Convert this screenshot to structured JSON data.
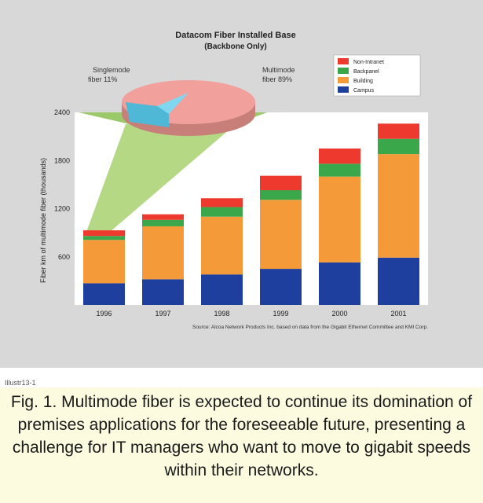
{
  "chart_data": {
    "type": "bar",
    "stacked": true,
    "title": "Datacom Fiber Installed Base",
    "subtitle": "(Backbone Only)",
    "ylabel": "Fiber km of multimode fiber (thousands)",
    "ylim": [
      0,
      2400
    ],
    "yticks": [
      "600",
      "1200",
      "1800",
      "2400"
    ],
    "ytick_values": [
      600,
      1200,
      1800,
      2400
    ],
    "categories": [
      "1996",
      "1997",
      "1998",
      "1999",
      "2000",
      "2001"
    ],
    "series": [
      {
        "name": "Campus",
        "color": "#1e3f9e",
        "values": [
          270,
          320,
          380,
          450,
          530,
          590
        ]
      },
      {
        "name": "Building",
        "color": "#f59a38",
        "values": [
          540,
          660,
          720,
          860,
          1070,
          1290
        ]
      },
      {
        "name": "Backpanel",
        "color": "#3aa84a",
        "values": [
          50,
          80,
          120,
          120,
          160,
          190
        ]
      },
      {
        "name": "Non-Intranet",
        "color": "#ee3a2e",
        "values": [
          70,
          70,
          110,
          180,
          190,
          190
        ]
      }
    ],
    "legend_position": "top-right",
    "pie": {
      "slices": [
        {
          "label": "Singlemode fiber 11%",
          "value": 11,
          "color": "#7fd8ef"
        },
        {
          "label": "Multimode fiber 89%",
          "value": 89,
          "color": "#f2a09c"
        }
      ]
    },
    "source": "Source: Alcoa Network Products Inc. based on data from the Gigabit Ethernet Committee and KMI Corp."
  },
  "figure_id": "Illustr13-1",
  "caption": "Fig. 1. Multimode fiber is expected to continue its domination of premises applications for the foreseeable future, presenting a challenge for IT managers who want to move to gigabit speeds within their networks."
}
